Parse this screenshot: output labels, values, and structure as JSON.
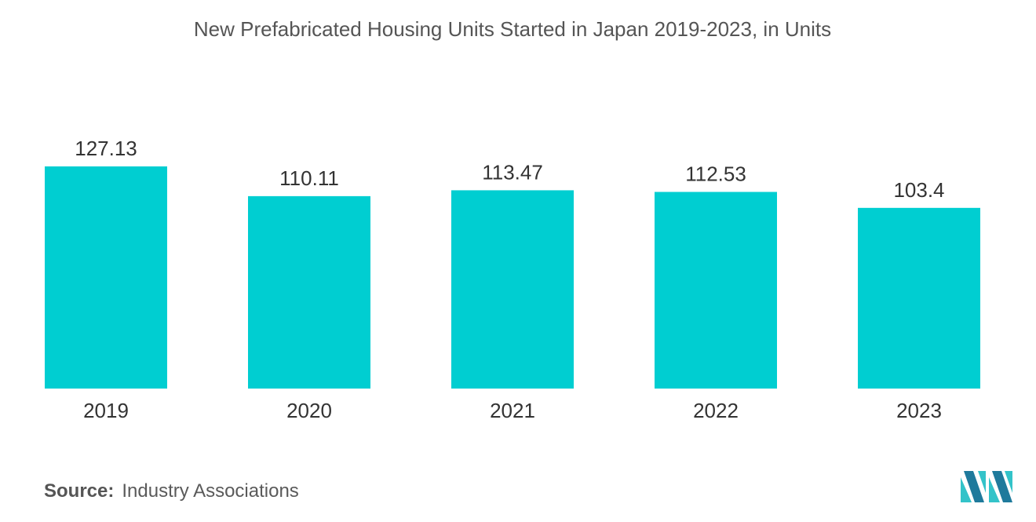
{
  "title": "New Prefabricated Housing Units Started in Japan 2019-2023, in Units",
  "source": {
    "label": "Source:",
    "text": "Industry Associations"
  },
  "colors": {
    "bar": "#00CED1",
    "logo_dark": "#1f7a9c",
    "logo_light": "#33c3c9"
  },
  "logo_icon": "mordor-intelligence-logo",
  "chart_data": {
    "type": "bar",
    "title": "New Prefabricated Housing Units Started in Japan 2019-2023, in Units",
    "categories": [
      "2019",
      "2020",
      "2021",
      "2022",
      "2023"
    ],
    "values": [
      127.13,
      110.11,
      113.47,
      112.53,
      103.4
    ],
    "value_labels": [
      "127.13",
      "110.11",
      "113.47",
      "112.53",
      "103.4"
    ],
    "xlabel": "",
    "ylabel": "",
    "ylim": [
      0,
      127.13
    ],
    "grid": false,
    "legend": "none"
  }
}
